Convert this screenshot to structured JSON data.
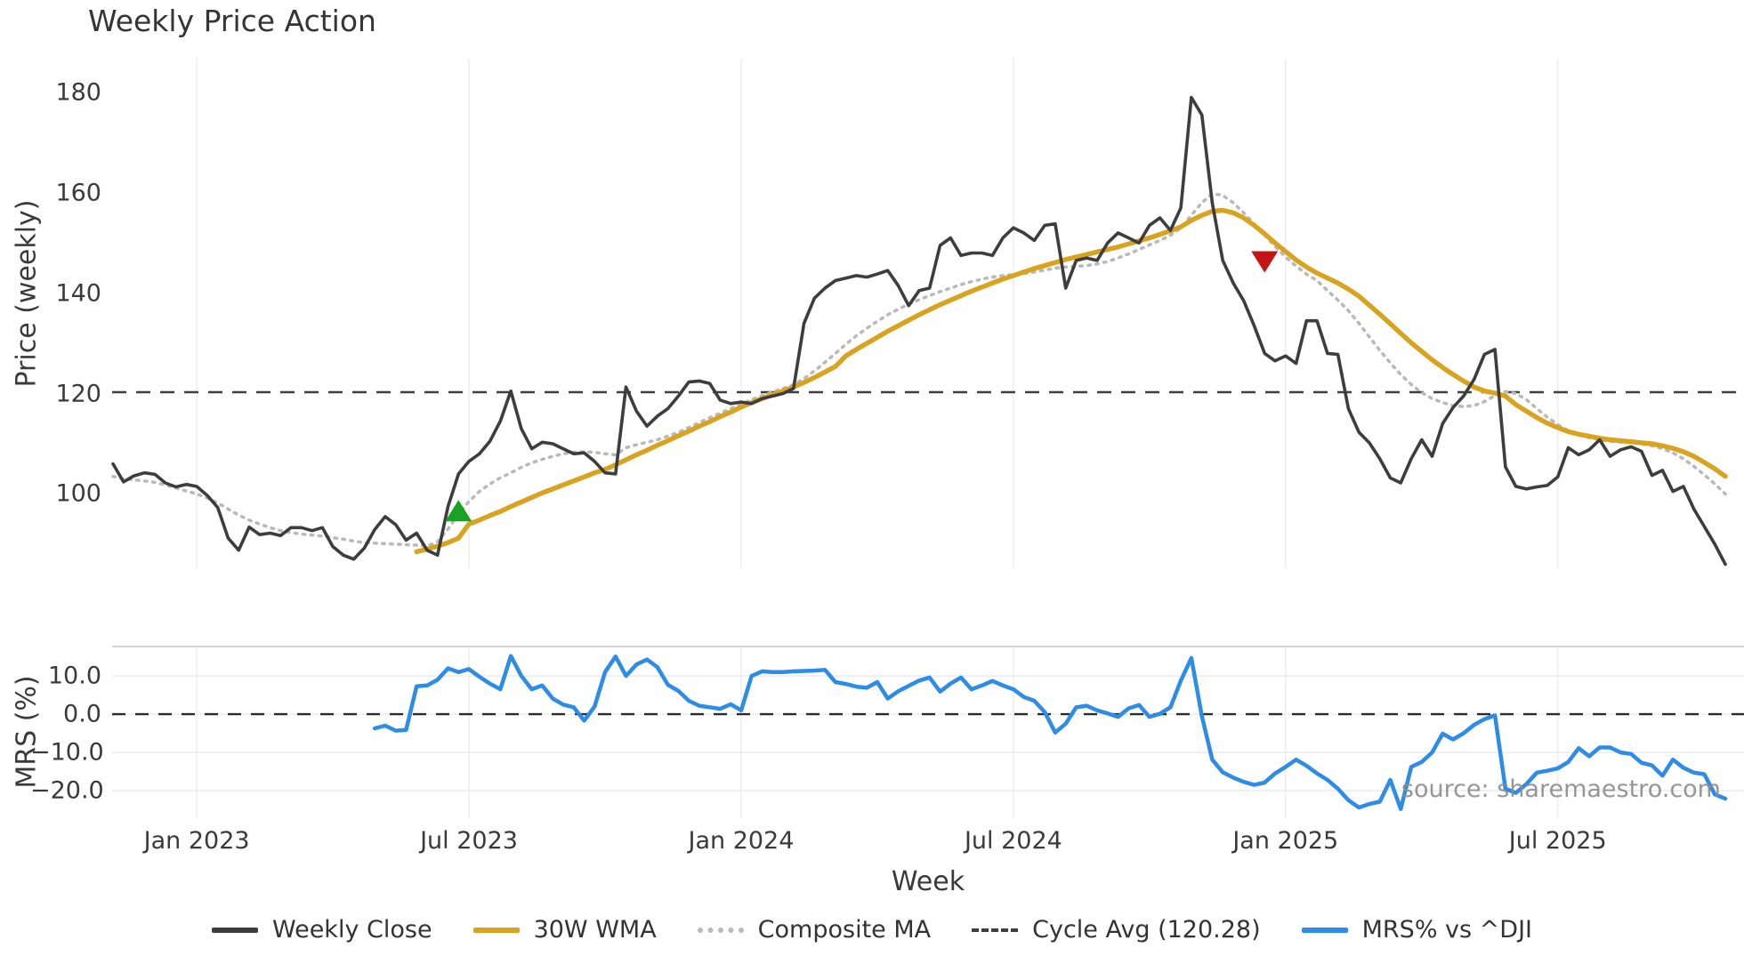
{
  "title": "Weekly Price Action",
  "watermark": "source: sharemaestro.com",
  "legend": {
    "items": [
      {
        "label": "Weekly Close",
        "color": "#3d3d3d",
        "style": "solid"
      },
      {
        "label": "30W WMA",
        "color": "#d9a320",
        "style": "solid"
      },
      {
        "label": "Composite MA",
        "color": "#b9b9b9",
        "style": "dotted"
      },
      {
        "label": "Cycle Avg (120.28)",
        "color": "#3f3f3f",
        "style": "dashed"
      },
      {
        "label": "MRS% vs ^DJI",
        "color": "#2d8ce8",
        "style": "solid"
      }
    ]
  },
  "chart_data": {
    "type": "line",
    "title": "Weekly Price Action",
    "xlabel": "Week",
    "x_unit": "week_index",
    "total_weeks": 155,
    "x_ticks": [
      {
        "week": 8,
        "label": "Jan 2023"
      },
      {
        "week": 34,
        "label": "Jul 2023"
      },
      {
        "week": 60,
        "label": "Jan 2024"
      },
      {
        "week": 86,
        "label": "Jul 2024"
      },
      {
        "week": 112,
        "label": "Jan 2025"
      },
      {
        "week": 138,
        "label": "Jul 2025"
      }
    ],
    "panels": [
      {
        "name": "price",
        "ylabel": "Price (weekly)",
        "ylim": [
          85.2,
          186.7
        ],
        "y_tick_values": [
          180,
          160,
          140,
          120,
          100
        ],
        "y_tick_labels": [
          "180",
          "160",
          "140",
          "120",
          "100"
        ],
        "grid": "vertical-only",
        "reference_line": {
          "label": "Cycle Avg (120.28)",
          "value": 120.28,
          "style": "dashed",
          "color": "#3f3f3f"
        },
        "markers": [
          {
            "signal": "buy",
            "shape": "triangle-up",
            "week": 33,
            "price": 96.5,
            "color": "#18a322"
          },
          {
            "signal": "sell",
            "shape": "triangle-down",
            "week": 110,
            "price": 146.4,
            "color": "#c41414"
          }
        ],
        "series": [
          {
            "name": "Weekly Close",
            "color": "#3d3d3d",
            "style": "solid",
            "width": 3.6,
            "start_week": 0,
            "values": [
              106,
              102.4,
              103.6,
              104.2,
              103.9,
              102.2,
              101.4,
              101.9,
              101.5,
              99.7,
              97.3,
              91.2,
              88.8,
              93.4,
              91.9,
              92.2,
              91.7,
              93.3,
              93.3,
              92.7,
              93.3,
              89.5,
              87.8,
              87,
              89.2,
              92.9,
              95.5,
              93.9,
              90.8,
              92.2,
              88.8,
              87.8,
              97.5,
              104,
              106.5,
              108,
              110.5,
              114.5,
              120.5,
              113,
              109,
              110.3,
              110,
              109,
              108,
              108.2,
              106.5,
              104.2,
              104,
              121.3,
              116.5,
              113.5,
              115.5,
              117,
              119.5,
              122.3,
              122.5,
              122,
              118.7,
              118,
              118.3,
              118,
              119,
              119.5,
              120,
              121,
              134,
              139,
              141,
              142.5,
              143,
              143.5,
              143.2,
              143.8,
              144.5,
              141.5,
              137.5,
              140.5,
              141,
              149.5,
              151,
              147.5,
              148,
              148,
              147.5,
              151,
              153,
              152,
              150.5,
              153.5,
              153.8,
              141,
              146.5,
              147,
              146.5,
              150,
              152,
              151,
              150,
              153.5,
              155,
              152.5,
              157,
              179,
              175.5,
              158,
              146.5,
              142,
              138.5,
              133.5,
              128,
              126.5,
              127.5,
              126,
              134.5,
              134.5,
              128,
              127.8,
              117,
              112.3,
              110.2,
              107,
              103.2,
              102.2,
              107,
              110.8,
              107.5,
              114,
              117.2,
              119.5,
              122.8,
              127.8,
              128.8,
              105.4,
              101.5,
              101,
              101.4,
              101.7,
              103.4,
              109.2,
              107.8,
              108.8,
              110.8,
              107.5,
              108.8,
              109.4,
              108.5,
              103.7,
              104.7,
              100.5,
              101.5,
              97,
              93.5,
              90,
              86
            ]
          },
          {
            "name": "30W WMA",
            "color": "#d9a320",
            "style": "solid",
            "width": 5.4,
            "start_week": 29,
            "values": [
              88.5,
              89,
              89.6,
              90.3,
              91.2,
              94,
              94.8,
              95.7,
              96.5,
              97.5,
              98.4,
              99.3,
              100.2,
              101,
              101.8,
              102.6,
              103.4,
              104.2,
              104.9,
              105.8,
              106.8,
              107.8,
              108.7,
              109.7,
              110.6,
              111.6,
              112.5,
              113.5,
              114.4,
              115.4,
              116.3,
              117.3,
              118.2,
              119,
              119.8,
              120.5,
              121.3,
              122.2,
              123.2,
              124.3,
              125.4,
              127.5,
              128.8,
              130,
              131.2,
              132.4,
              133.5,
              134.6,
              135.7,
              136.7,
              137.7,
              138.6,
              139.5,
              140.4,
              141.2,
              142,
              142.8,
              143.5,
              144.2,
              144.9,
              145.5,
              146.1,
              146.7,
              147.2,
              147.7,
              148.2,
              148.7,
              149.2,
              149.8,
              150.4,
              151,
              151.7,
              152.4,
              153.2,
              154.5,
              155.5,
              156.3,
              156.5,
              156,
              155,
              153.5,
              151.8,
              150,
              148.3,
              146.6,
              145.2,
              144,
              143,
              142,
              140.8,
              139.4,
              137.6,
              135.8,
              133.9,
              132,
              130.1,
              128.4,
              126.7,
              125.2,
              123.8,
              122.5,
              121.3,
              120.5,
              120.1,
              119.5,
              117.8,
              116.5,
              115.2,
              114.1,
              113.2,
              112.4,
              111.9,
              111.5,
              111.1,
              110.8,
              110.6,
              110.4,
              110.2,
              110,
              109.6,
              109.1,
              108.4,
              107.5,
              106.3,
              105,
              103.5
            ]
          },
          {
            "name": "Composite MA",
            "color": "#b9b9b9",
            "style": "dotted",
            "width": 3.5,
            "start_week": 0,
            "values": [
              103.5,
              103,
              102.8,
              102.6,
              102.3,
              101.8,
              101.2,
              100.6,
              100,
              99.2,
              98.2,
              97,
              95.8,
              94.8,
              94,
              93.3,
              92.7,
              92.3,
              92,
              91.8,
              91.6,
              91.3,
              91,
              90.6,
              90.3,
              90.2,
              90.1,
              90,
              89.9,
              89.8,
              89.6,
              90.5,
              93,
              96,
              98.5,
              100.5,
              102,
              103.2,
              104.2,
              105.3,
              106.2,
              106.9,
              107.5,
              108,
              108.3,
              108.4,
              108.3,
              108,
              107.8,
              109.2,
              109.8,
              110.3,
              110.8,
              111.5,
              112.3,
              113.2,
              114.2,
              115.2,
              116.1,
              117,
              117.9,
              118.8,
              119.6,
              120.3,
              121,
              121.8,
              123,
              124.5,
              126.2,
              128,
              129.8,
              131.5,
              133,
              134.4,
              135.7,
              136.8,
              137.8,
              138.7,
              139.5,
              140.3,
              141,
              141.7,
              142.3,
              142.8,
              143.2,
              143.5,
              143.7,
              143.9,
              144.2,
              144.6,
              145,
              145.2,
              145.3,
              145.5,
              145.8,
              146.3,
              147,
              147.8,
              148.7,
              149.6,
              150.5,
              151.5,
              153,
              155.5,
              158,
              159.8,
              159.5,
              158,
              156,
              153.8,
              151.5,
              149.3,
              147.2,
              145.4,
              143.8,
              142.5,
              140.5,
              138.6,
              136.5,
              134,
              131.3,
              128.6,
              126.1,
              123.8,
              121.8,
              120.2,
              119,
              118.2,
              117.6,
              117.4,
              117.6,
              118.4,
              119.6,
              120.4,
              120,
              118.8,
              117,
              115.3,
              113.8,
              112.6,
              111.8,
              111.2,
              110.8,
              110.5,
              110.3,
              110.2,
              110,
              109.6,
              109,
              108.2,
              107,
              105.5,
              103.8,
              102,
              100
            ]
          }
        ]
      },
      {
        "name": "mrs",
        "ylabel": "MRS (%)",
        "ylim": [
          -27.2,
          17.7
        ],
        "y_tick_values": [
          10,
          0,
          -10,
          -20
        ],
        "y_tick_labels": [
          "10.0",
          "0.0",
          "−10.0",
          "−20.0"
        ],
        "grid": "horizontal-and-vertical",
        "reference_line": {
          "label": "zero line",
          "value": 0,
          "style": "dashed",
          "color": "#2b2b2b"
        },
        "series": [
          {
            "name": "MRS% vs ^DJI",
            "color": "#2d8ce8",
            "style": "solid",
            "width": 4.5,
            "start_week": 25,
            "values": [
              -3.7,
              -3,
              -4.3,
              -4.1,
              7.3,
              7.5,
              9,
              12,
              11,
              11.8,
              9.8,
              8,
              6.5,
              15.2,
              10,
              6.5,
              7.5,
              4.1,
              2.5,
              1.8,
              -1.7,
              2,
              11,
              15.1,
              10,
              13,
              14.3,
              12.3,
              7.7,
              6.1,
              3.5,
              2.2,
              1.8,
              1.4,
              2.6,
              1,
              10,
              11.2,
              11,
              11,
              11.2,
              11.3,
              11.4,
              11.6,
              8.4,
              7.9,
              7.2,
              6.9,
              8.4,
              4.1,
              6,
              7.4,
              8.8,
              9.6,
              5.9,
              8,
              9.6,
              6.5,
              7.5,
              8.7,
              7.5,
              6.5,
              4.5,
              3.5,
              0.5,
              -4.8,
              -2.5,
              1.8,
              2.2,
              1,
              0.2,
              -0.7,
              1.5,
              2.4,
              -0.7,
              0.1,
              1.8,
              8.8,
              14.7,
              -0.5,
              -11.9,
              -15.2,
              -16.6,
              -17.7,
              -18.5,
              -17.9,
              -15.5,
              -13.8,
              -11.9,
              -13.5,
              -15.5,
              -17.2,
              -19.5,
              -22.5,
              -24.4,
              -23.5,
              -22.9,
              -17.2,
              -24.8,
              -13.8,
              -12.5,
              -10,
              -5.1,
              -6.6,
              -5,
              -2.8,
              -1.3,
              -0.3,
              -19.5,
              -20.6,
              -18.3,
              -15.3,
              -14.8,
              -14.2,
              -12.5,
              -8.9,
              -11,
              -8.7,
              -8.7,
              -10,
              -10.4,
              -12.7,
              -13.4,
              -16.1,
              -11.9,
              -14,
              -15.3,
              -15.7,
              -21,
              -22.1
            ]
          }
        ]
      }
    ]
  }
}
